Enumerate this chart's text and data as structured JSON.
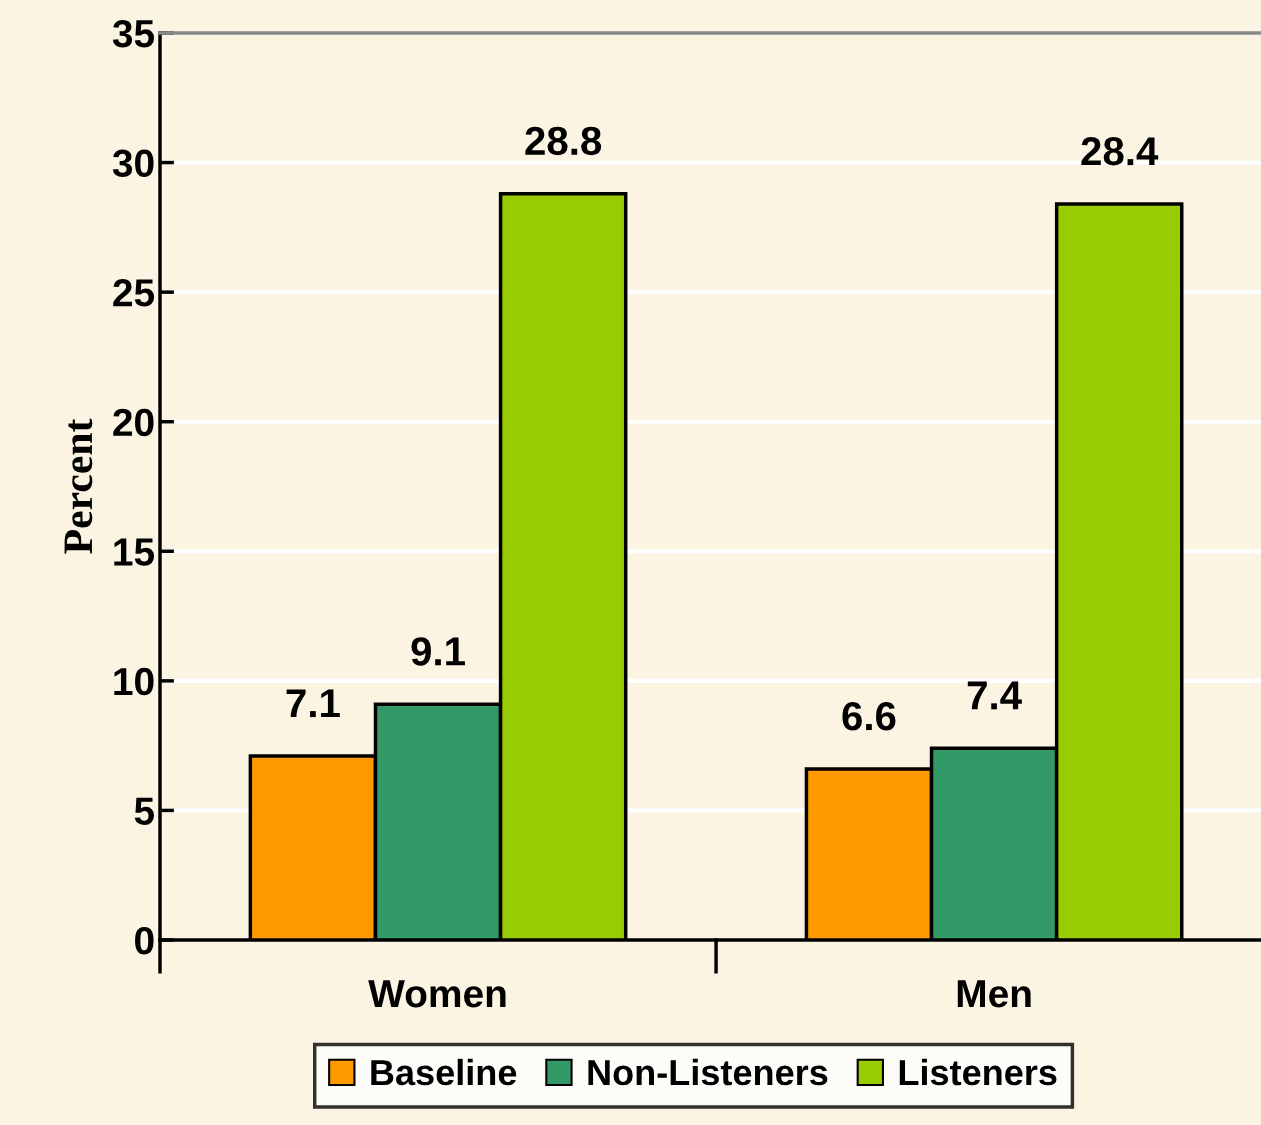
{
  "chart_data": {
    "type": "bar",
    "ylabel": "Percent",
    "categories": [
      "Women",
      "Men"
    ],
    "series": [
      {
        "name": "Baseline",
        "color": "#ff9900",
        "values": [
          7.1,
          6.6
        ]
      },
      {
        "name": "Non-Listeners",
        "color": "#339966",
        "values": [
          9.1,
          7.4
        ]
      },
      {
        "name": "Listeners",
        "color": "#99cc00",
        "values": [
          28.8,
          28.4
        ]
      }
    ],
    "ylim": [
      0,
      35
    ],
    "yticks": [
      0,
      5,
      10,
      15,
      20,
      25,
      30,
      35
    ],
    "grid": "y",
    "legend": "bottom",
    "data_labels": true
  }
}
